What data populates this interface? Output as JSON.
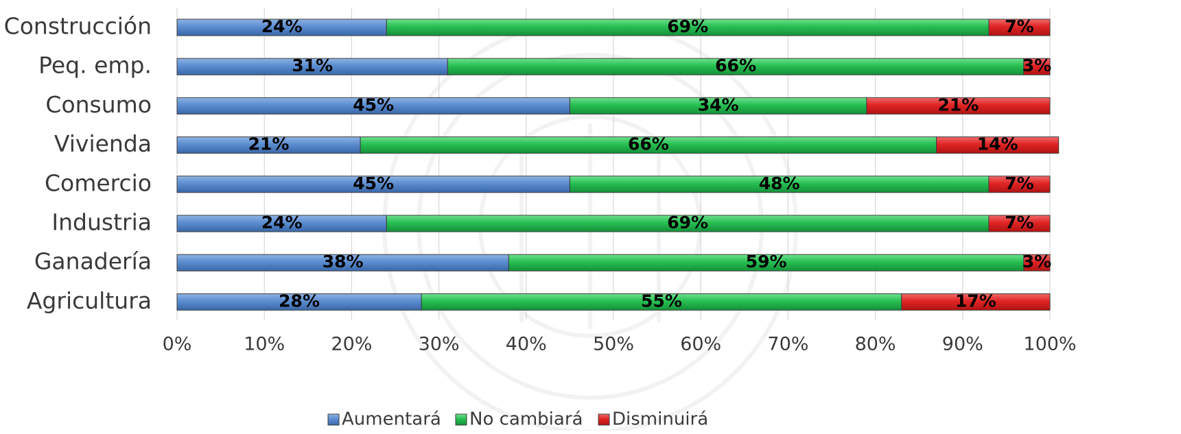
{
  "chart_data": {
    "type": "bar",
    "orientation": "horizontal",
    "stacked": "percent",
    "categories": [
      "Construcción",
      "Peq. emp.",
      "Consumo",
      "Vivienda",
      "Comercio",
      "Industria",
      "Ganadería",
      "Agricultura"
    ],
    "series": [
      {
        "name": "Aumentará",
        "color": "#4f81bd",
        "values": [
          24,
          31,
          45,
          21,
          45,
          24,
          38,
          28
        ]
      },
      {
        "name": "No cambiará",
        "color": "#1fb24a",
        "values": [
          69,
          66,
          34,
          66,
          48,
          69,
          59,
          55
        ]
      },
      {
        "name": "Disminuirá",
        "color": "#d71f1f",
        "values": [
          7,
          3,
          21,
          14,
          7,
          7,
          3,
          17
        ]
      }
    ],
    "xlim": [
      0,
      100
    ],
    "xticks": [
      "0%",
      "10%",
      "20%",
      "30%",
      "40%",
      "50%",
      "60%",
      "70%",
      "80%",
      "90%",
      "100%"
    ],
    "value_suffix": "%",
    "grid": "vertical",
    "legend_position": "bottom"
  }
}
